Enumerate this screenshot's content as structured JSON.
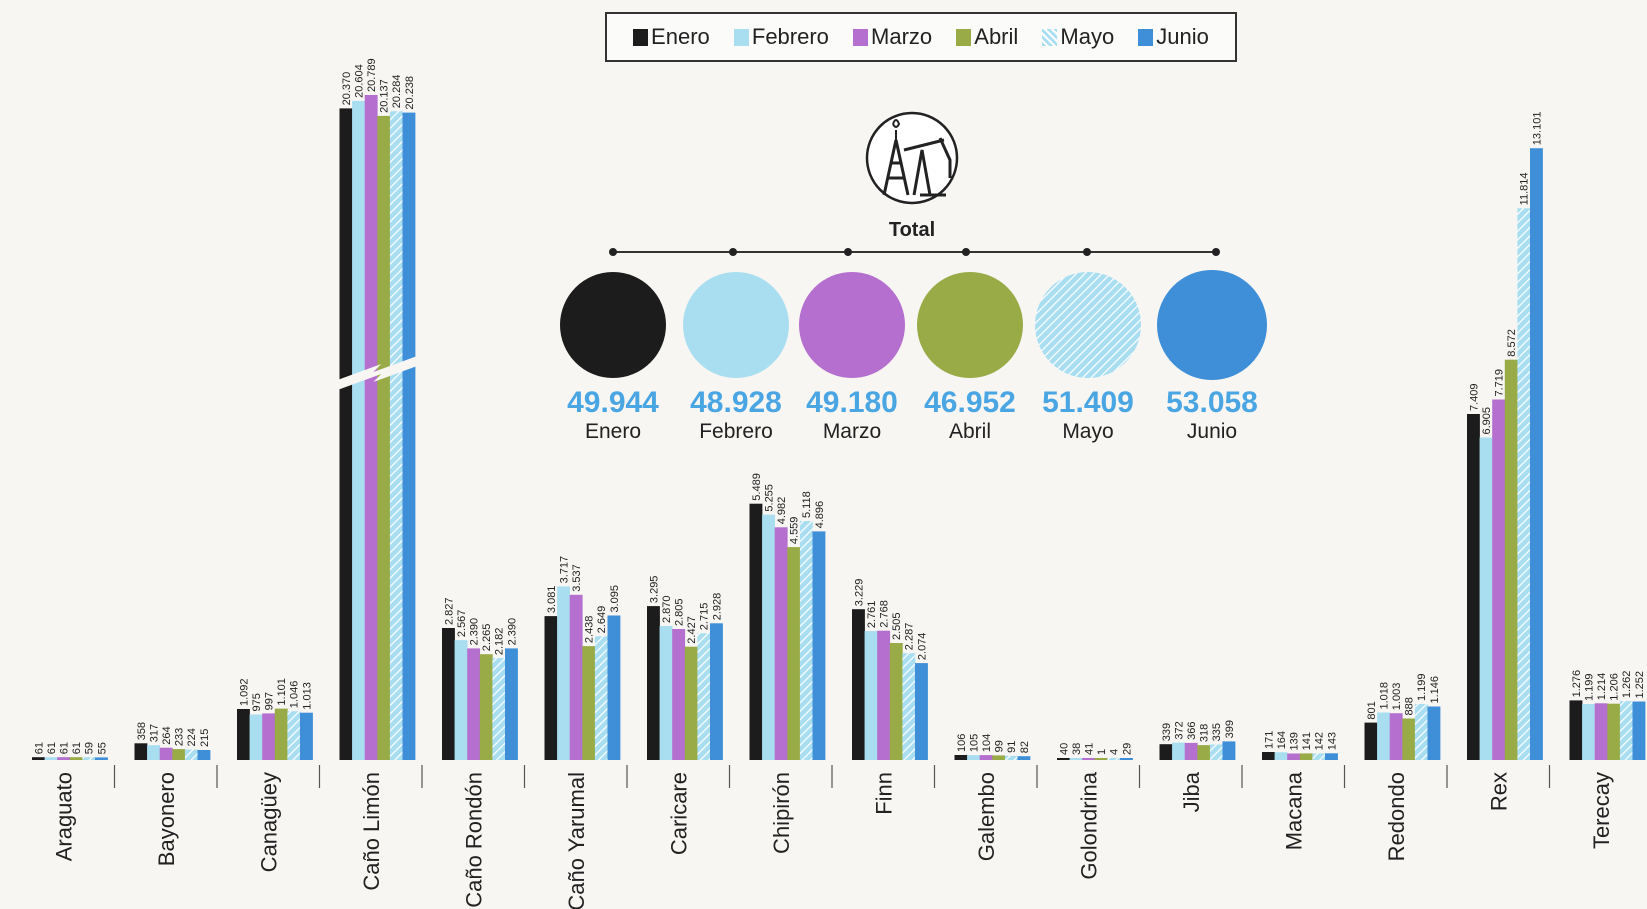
{
  "legend": {
    "items": [
      {
        "label": "Enero",
        "color": "#1c1c1c"
      },
      {
        "label": "Febrero",
        "color": "#a9def1"
      },
      {
        "label": "Marzo",
        "color": "#b56fce"
      },
      {
        "label": "Abril",
        "color": "#98ab47"
      },
      {
        "label": "Mayo",
        "color": "#a9def1",
        "pattern": "hatch"
      },
      {
        "label": "Junio",
        "color": "#3f8fd8"
      }
    ]
  },
  "total": {
    "title": "Total",
    "icon": "oil-pump-icon",
    "items": [
      {
        "month": "Enero",
        "value": "49.944",
        "color": "#1c1c1c"
      },
      {
        "month": "Febrero",
        "value": "48.928",
        "color": "#a9def1"
      },
      {
        "month": "Marzo",
        "value": "49.180",
        "color": "#b56fce"
      },
      {
        "month": "Abril",
        "value": "46.952",
        "color": "#98ab47"
      },
      {
        "month": "Mayo",
        "value": "51.409",
        "color": "#a9def1",
        "pattern": "hatch"
      },
      {
        "month": "Junio",
        "value": "53.058",
        "color": "#3f8fd8"
      }
    ]
  },
  "chart_data": {
    "type": "bar",
    "categories": [
      "Araguato",
      "Bayonero",
      "Canagüey",
      "Caño Limón",
      "Caño Rondón",
      "Caño Yarumal",
      "Caricare",
      "Chipirón",
      "Finn",
      "Galembo",
      "Golondrina",
      "Jiba",
      "Macana",
      "Redondo",
      "Rex",
      "Terecay"
    ],
    "series": [
      {
        "name": "Enero",
        "values": [
          61,
          358,
          1092,
          20370,
          2827,
          3081,
          3295,
          5489,
          3229,
          106,
          40,
          339,
          171,
          801,
          7409,
          1276
        ]
      },
      {
        "name": "Febrero",
        "values": [
          61,
          317,
          975,
          20604,
          2567,
          3717,
          2870,
          5255,
          2761,
          105,
          38,
          372,
          164,
          1018,
          6905,
          1199
        ]
      },
      {
        "name": "Marzo",
        "values": [
          61,
          264,
          997,
          20789,
          2390,
          3537,
          2805,
          4982,
          2768,
          104,
          41,
          366,
          139,
          1003,
          7719,
          1214
        ]
      },
      {
        "name": "Abril",
        "values": [
          61,
          233,
          1101,
          20137,
          2265,
          2438,
          2427,
          4559,
          2505,
          99,
          1,
          318,
          141,
          888,
          8572,
          1206
        ]
      },
      {
        "name": "Mayo",
        "values": [
          59,
          224,
          1046,
          20284,
          2182,
          2649,
          2715,
          5118,
          2287,
          91,
          4,
          335,
          142,
          1199,
          11814,
          1262
        ]
      },
      {
        "name": "Junio",
        "values": [
          55,
          215,
          1013,
          20238,
          2390,
          3095,
          2928,
          4896,
          2074,
          82,
          29,
          399,
          143,
          1146,
          13101,
          1252
        ]
      }
    ],
    "labels": [
      [
        "61",
        "61",
        "61",
        "61",
        "59",
        "55"
      ],
      [
        "358",
        "317",
        "264",
        "233",
        "224",
        "215"
      ],
      [
        "1.092",
        "975",
        "997",
        "1.101",
        "1.046",
        "1.013"
      ],
      [
        "20.370",
        "20.604",
        "20.789",
        "20.137",
        "20.284",
        "20.238"
      ],
      [
        "2.827",
        "2.567",
        "2.390",
        "2.265",
        "2.182",
        "2.390"
      ],
      [
        "3.081",
        "3.717",
        "3.537",
        "2.438",
        "2.649",
        "3.095"
      ],
      [
        "3.295",
        "2.870",
        "2.805",
        "2.427",
        "2.715",
        "2.928"
      ],
      [
        "5.489",
        "5.255",
        "4.982",
        "4.559",
        "5.118",
        "4.896"
      ],
      [
        "3.229",
        "2.761",
        "2.768",
        "2.505",
        "2.287",
        "2.074"
      ],
      [
        "106",
        "105",
        "104",
        "99",
        "91",
        "82"
      ],
      [
        "40",
        "38",
        "41",
        "1",
        "4",
        "29"
      ],
      [
        "339",
        "372",
        "366",
        "318",
        "335",
        "399"
      ],
      [
        "171",
        "164",
        "139",
        "141",
        "142",
        "143"
      ],
      [
        "801",
        "1.018",
        "1.003",
        "888",
        "1.199",
        "1.146"
      ],
      [
        "7.409",
        "6.905",
        "7.719",
        "8.572",
        "11.814",
        "13.101"
      ],
      [
        "1.276",
        "1.199",
        "1.214",
        "1.206",
        "1.262",
        "1.252"
      ]
    ],
    "axis_break_category": "Caño Limón",
    "grid": false,
    "legend_position": "top-center"
  }
}
